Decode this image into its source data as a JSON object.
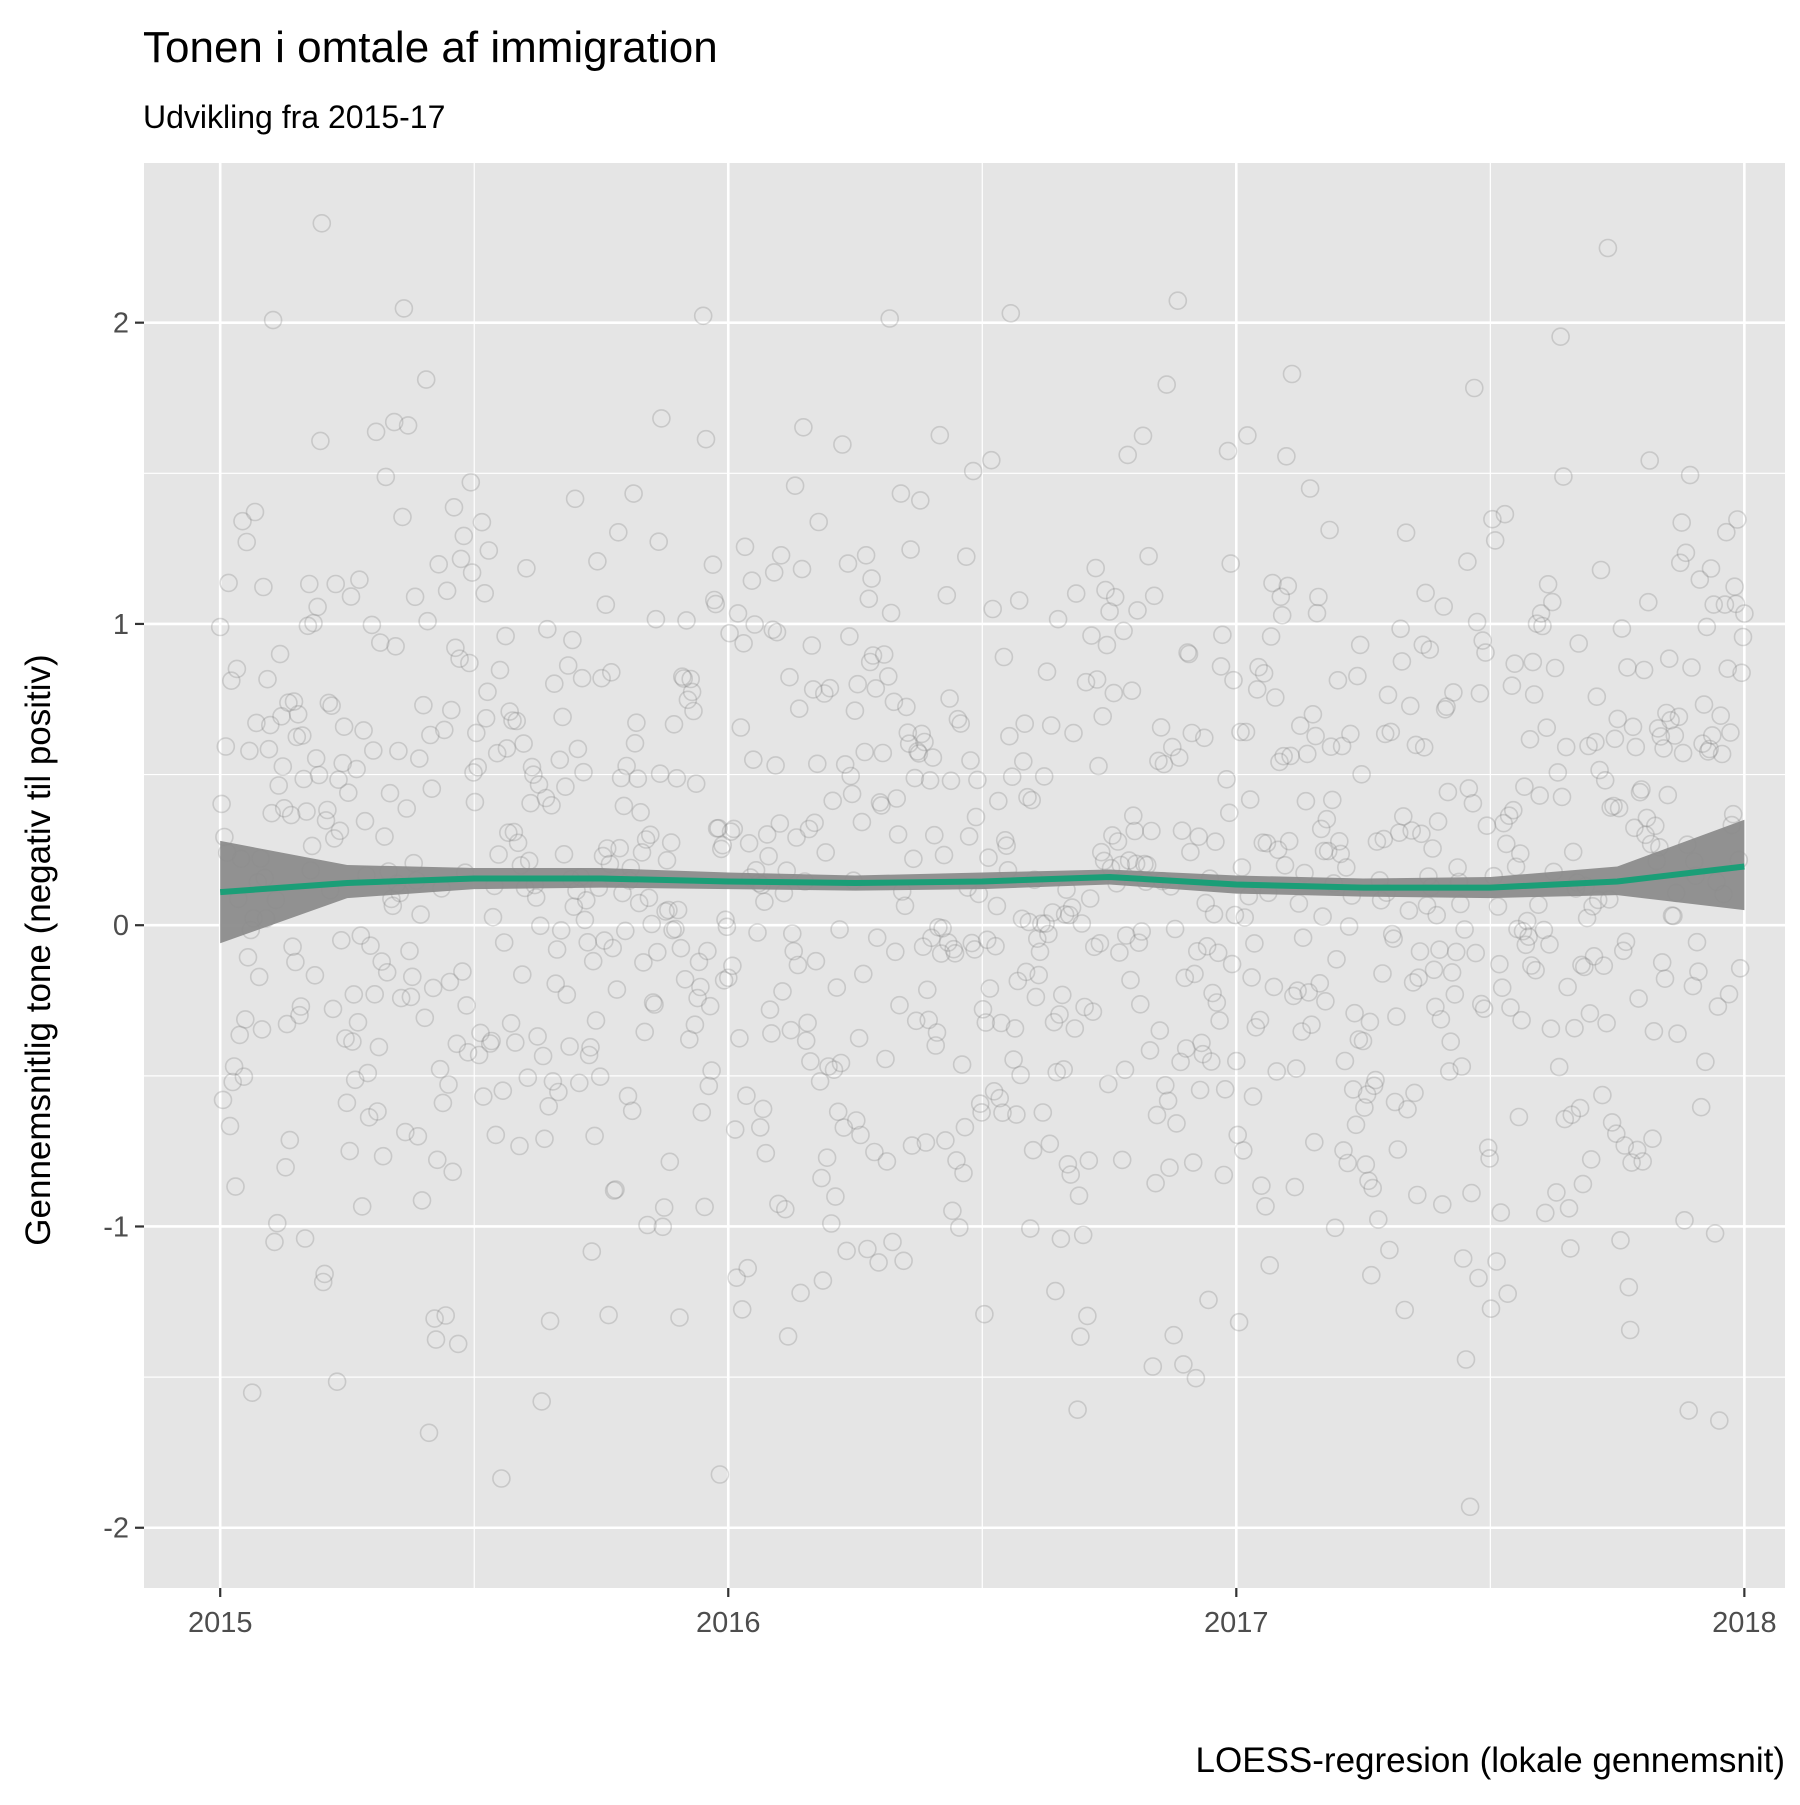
{
  "chart_data": {
    "type": "scatter",
    "title": "Tonen i omtale af immigration",
    "subtitle": "Udvikling fra 2015-17",
    "xlabel": "LOESS-regresion (lokale gennemsnit)",
    "ylabel": "Gennemsnitlig tone (negativ til positiv)",
    "xlim": [
      2014.85,
      2018.08
    ],
    "ylim": [
      -2.2,
      2.53
    ],
    "x_ticks": [
      2015,
      2016,
      2017,
      2018
    ],
    "x_tick_labels": [
      "2015",
      "2016",
      "2017",
      "2018"
    ],
    "y_ticks": [
      -2,
      -1,
      0,
      1,
      2
    ],
    "y_tick_labels": [
      "-2",
      "-1",
      "0",
      "1",
      "2"
    ],
    "grid": true,
    "legend": "none",
    "colors": {
      "panel_background": "#e5e5e5",
      "grid": "#ffffff",
      "points": "#7f7f7f",
      "smooth_line": "#1b9e77",
      "confidence_band": "#8c8c8c"
    },
    "loess": {
      "x": [
        2015.0,
        2015.25,
        2015.5,
        2015.75,
        2016.0,
        2016.25,
        2016.5,
        2016.75,
        2017.0,
        2017.25,
        2017.5,
        2017.75,
        2018.0
      ],
      "fit": [
        0.11,
        0.14,
        0.155,
        0.155,
        0.145,
        0.14,
        0.145,
        0.16,
        0.135,
        0.125,
        0.125,
        0.145,
        0.195
      ],
      "lower": [
        -0.06,
        0.09,
        0.12,
        0.125,
        0.12,
        0.115,
        0.12,
        0.135,
        0.105,
        0.095,
        0.09,
        0.1,
        0.05
      ],
      "upper": [
        0.28,
        0.2,
        0.19,
        0.19,
        0.175,
        0.165,
        0.175,
        0.185,
        0.165,
        0.155,
        0.16,
        0.195,
        0.35
      ]
    }
  }
}
